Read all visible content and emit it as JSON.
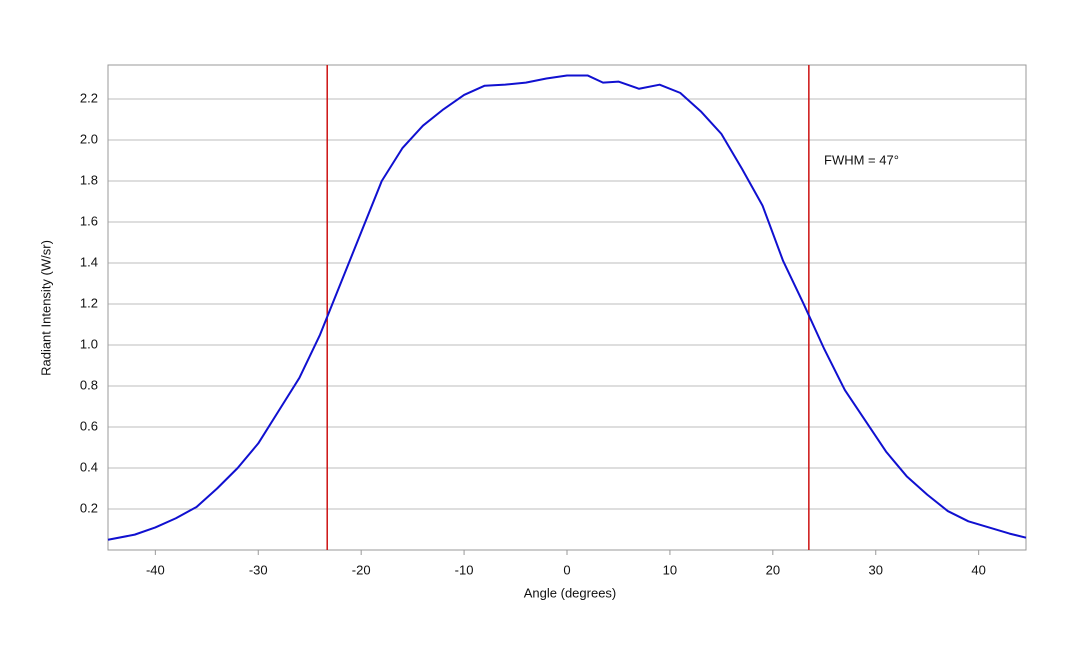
{
  "chart_data": {
    "type": "line",
    "x_label": "Angle (degrees)",
    "y_label": "Radiant Intensity (W/sr)",
    "annotation": "FWHM = 47°",
    "x": [
      -44.6,
      -42,
      -40,
      -38,
      -36,
      -34,
      -32,
      -30,
      -28,
      -26,
      -24,
      -22,
      -20,
      -18,
      -16,
      -14,
      -12,
      -10,
      -8,
      -6,
      -4,
      -2,
      0,
      2,
      3.5,
      5,
      7,
      9,
      11,
      13,
      15,
      17,
      19,
      21,
      23,
      25,
      27,
      29,
      31,
      33,
      35,
      37,
      39,
      41,
      43,
      44.6
    ],
    "series": [
      {
        "color": "#1010d0",
        "values": [
          0.05,
          0.075,
          0.11,
          0.155,
          0.21,
          0.3,
          0.4,
          0.52,
          0.68,
          0.84,
          1.05,
          1.3,
          1.55,
          1.8,
          1.96,
          2.07,
          2.15,
          2.22,
          2.265,
          2.27,
          2.28,
          2.3,
          2.315,
          2.315,
          2.28,
          2.285,
          2.25,
          2.27,
          2.23,
          2.14,
          2.03,
          1.86,
          1.68,
          1.41,
          1.2,
          0.98,
          0.78,
          0.63,
          0.48,
          0.36,
          0.27,
          0.19,
          0.14,
          0.11,
          0.08,
          0.06
        ]
      }
    ],
    "vlines": [
      -23.3,
      23.5
    ],
    "vline_color": "#cc1111",
    "xlim": [
      -44.6,
      44.6
    ],
    "ylim": [
      0,
      2.366
    ],
    "xticks": [
      -40,
      -30,
      -20,
      -10,
      0,
      10,
      20,
      30,
      40
    ],
    "yticks": [
      0.2,
      0.4,
      0.6,
      0.8,
      {
        "value": 1,
        "label": "1.0"
      },
      1.2,
      1.4,
      1.6,
      1.8,
      {
        "value": 2,
        "label": "2.0"
      },
      2.2
    ],
    "grid": true
  }
}
